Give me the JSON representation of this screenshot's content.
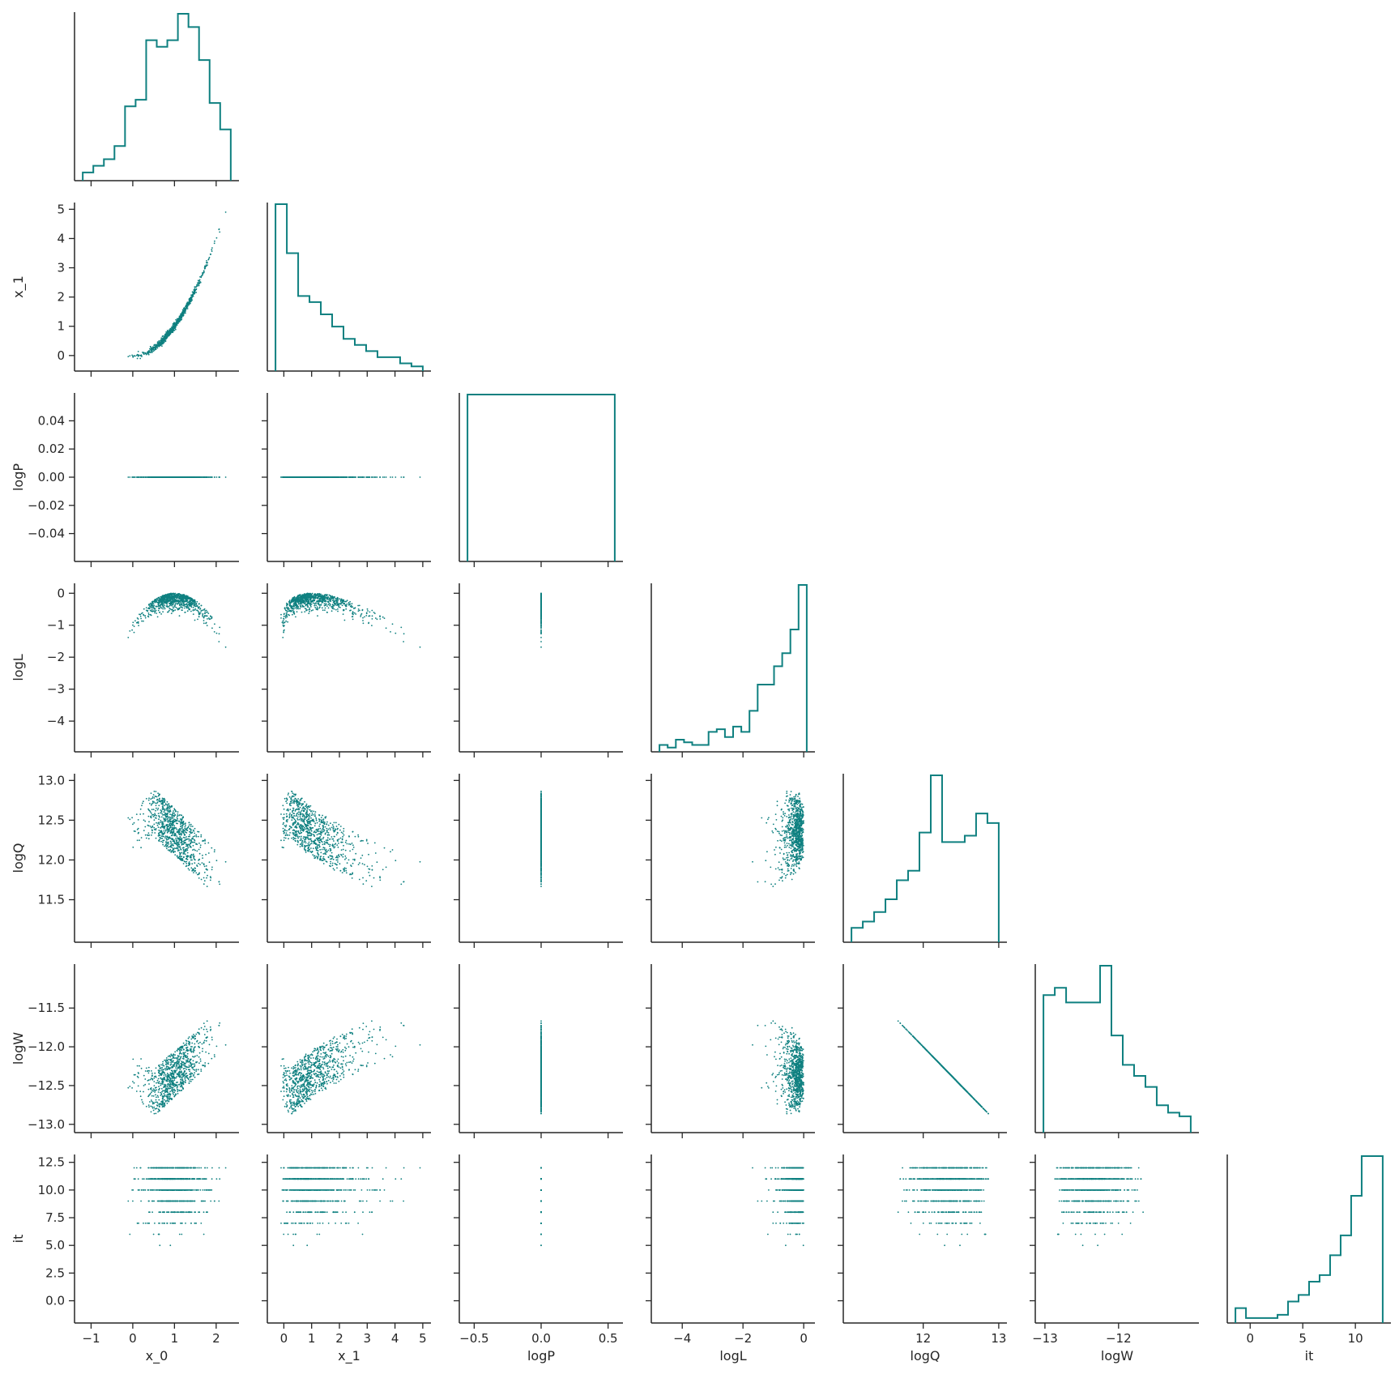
{
  "chart_data": {
    "type": "scatter",
    "kind": "pairplot-corner",
    "color": "#0f8080",
    "diag_style": "step-histogram",
    "variables": [
      "x_0",
      "x_1",
      "logP",
      "logL",
      "logQ",
      "logW",
      "it"
    ],
    "axes": {
      "x_0": {
        "lim": [
          -1.2,
          2.35
        ],
        "ticks": [
          -1,
          0,
          1,
          2
        ],
        "tick_labels": [
          "−1",
          "0",
          "1",
          "2"
        ]
      },
      "x_1": {
        "lim": [
          -0.3,
          5.0
        ],
        "ticks": [
          0,
          1,
          2,
          3,
          4,
          5
        ],
        "tick_labels": [
          "0",
          "1",
          "2",
          "3",
          "4",
          "5"
        ]
      },
      "logP": {
        "lim": [
          -0.055,
          0.055
        ],
        "ticks": [
          -0.04,
          -0.02,
          0.0,
          0.02,
          0.04
        ],
        "tick_labels": [
          "−0.04",
          "−0.02",
          "0.00",
          "0.02",
          "0.04"
        ],
        "x_ticks": [
          -0.5,
          0,
          0.5
        ],
        "x_tick_labels": [
          "−0.5",
          "0.0",
          "0.5"
        ],
        "x_lim": [
          -0.55,
          0.55
        ]
      },
      "logL": {
        "lim": [
          -4.75,
          0.1
        ],
        "ticks": [
          -4,
          -3,
          -2,
          -1,
          0
        ],
        "tick_labels": [
          "−4",
          "−3",
          "−2",
          "−1",
          "0"
        ],
        "x_ticks": [
          -4,
          -2,
          0
        ],
        "x_tick_labels": [
          "−4",
          "−2",
          "0"
        ]
      },
      "logQ": {
        "lim": [
          11.05,
          13.0
        ],
        "ticks": [
          11.5,
          12.0,
          12.5,
          13.0
        ],
        "tick_labels": [
          "11.5",
          "12.0",
          "12.5",
          "13.0"
        ],
        "x_ticks": [
          12,
          13
        ],
        "x_tick_labels": [
          "12",
          "13"
        ]
      },
      "logW": {
        "lim": [
          -13.02,
          -11.02
        ],
        "ticks": [
          -13.0,
          -12.5,
          -12.0,
          -11.5
        ],
        "tick_labels": [
          "−13.0",
          "−12.5",
          "−12.0",
          "−11.5"
        ],
        "x_ticks": [
          -13,
          -12
        ],
        "x_tick_labels": [
          "−13",
          "−12"
        ]
      },
      "it": {
        "lim": [
          -1.4,
          12.6
        ],
        "ticks": [
          0,
          2.5,
          5,
          7.5,
          10,
          12.5
        ],
        "tick_labels": [
          "0.0",
          "2.5",
          "5.0",
          "7.5",
          "10.0",
          "12.5"
        ],
        "x_ticks": [
          0,
          5,
          10
        ],
        "x_tick_labels": [
          "0",
          "5",
          "10"
        ]
      }
    },
    "hist_counts": {
      "x_0": [
        2,
        4,
        6,
        10,
        22,
        24,
        42,
        40,
        42,
        50,
        46,
        36,
        23,
        15
      ],
      "x_1": [
        27,
        19,
        12,
        11,
        9,
        7,
        5,
        4,
        3,
        2,
        2,
        1,
        0.5
      ],
      "logP": [
        1
      ],
      "logL": [
        2,
        1,
        4,
        3,
        2,
        2,
        7,
        8,
        5,
        9,
        7,
        15,
        25,
        25,
        32,
        37,
        46,
        63
      ],
      "logQ": [
        4,
        6,
        9,
        13,
        19,
        22,
        34,
        52,
        31,
        31,
        33,
        40,
        37
      ],
      "logW": [
        37,
        39,
        35,
        35,
        35,
        45,
        26,
        18,
        15,
        12,
        7,
        5,
        4
      ],
      "it": [
        2,
        0.5,
        0.5,
        0.5,
        1,
        3,
        4,
        6,
        7,
        10,
        13,
        19,
        25,
        25
      ]
    }
  }
}
